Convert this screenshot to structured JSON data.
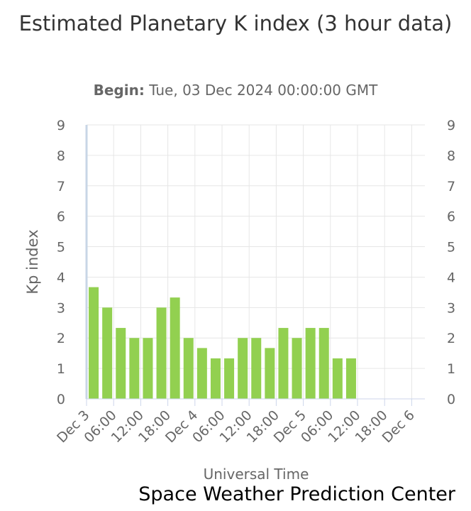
{
  "chart_data": {
    "type": "bar",
    "title": "Estimated Planetary K index (3 hour data)",
    "subtitle_label": "Begin:",
    "subtitle_value": "Tue, 03 Dec 2024 00:00:00 GMT",
    "xlabel": "Universal Time",
    "ylabel": "Kp index",
    "ylim": [
      0,
      9
    ],
    "yticks": [
      "0",
      "1",
      "2",
      "3",
      "4",
      "5",
      "6",
      "7",
      "8",
      "9"
    ],
    "xticks": [
      "Dec 3",
      "06:00",
      "12:00",
      "18:00",
      "Dec 4",
      "06:00",
      "12:00",
      "18:00",
      "Dec 5",
      "06:00",
      "12:00",
      "18:00",
      "Dec 6"
    ],
    "bar_color": "#92d050",
    "grid": true,
    "series": [
      {
        "values": [
          3.67,
          3.0,
          2.33,
          2.0,
          2.0,
          3.0,
          3.33,
          2.0,
          1.67,
          1.33,
          1.33,
          2.0,
          2.0,
          1.67,
          2.33,
          2.0,
          2.33,
          2.33,
          1.33,
          1.33
        ]
      }
    ]
  },
  "credit": "Space Weather Prediction Center"
}
